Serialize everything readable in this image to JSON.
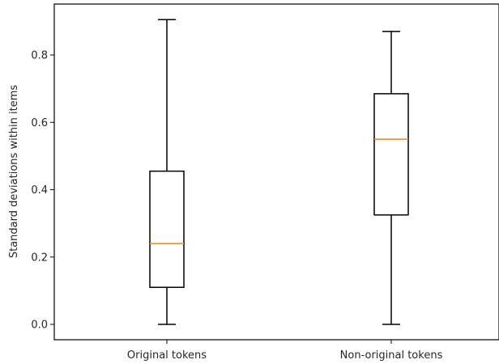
{
  "chart_data": {
    "type": "box",
    "title": "",
    "xlabel": "",
    "ylabel": "Standard deviations within items",
    "ylim": [
      -0.045,
      0.95
    ],
    "yticks": [
      0.0,
      0.2,
      0.4,
      0.6,
      0.8
    ],
    "ytick_labels": [
      "0.0",
      "0.2",
      "0.4",
      "0.6",
      "0.8"
    ],
    "categories": [
      "Original tokens",
      "Non-original tokens"
    ],
    "boxes": [
      {
        "whisker_low": 0.0,
        "q1": 0.11,
        "median": 0.24,
        "q3": 0.455,
        "whisker_high": 0.905
      },
      {
        "whisker_low": 0.0,
        "q1": 0.325,
        "median": 0.55,
        "q3": 0.685,
        "whisker_high": 0.87
      }
    ],
    "grid": false,
    "colors": {
      "box": "#000000",
      "median": "#ff7f0e"
    }
  }
}
